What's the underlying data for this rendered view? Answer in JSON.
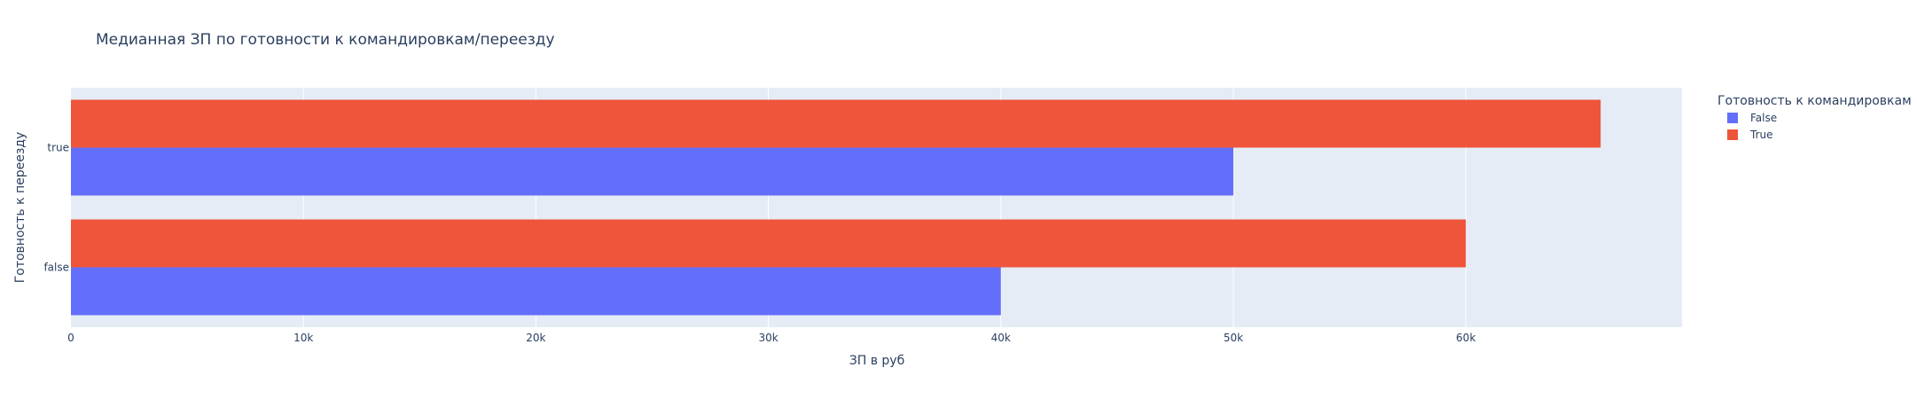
{
  "chart_data": {
    "type": "bar",
    "orientation": "horizontal",
    "barmode": "group",
    "title": "Медианная ЗП по готовности к командировкам/переезду",
    "xlabel": "ЗП в руб",
    "ylabel": "Готовность к переезду",
    "categories": [
      "false",
      "true"
    ],
    "xlim": [
      0,
      69300
    ],
    "x_ticks": [
      0,
      10000,
      20000,
      30000,
      40000,
      50000,
      60000
    ],
    "x_tick_labels": [
      "0",
      "10k",
      "20k",
      "30k",
      "40k",
      "50k",
      "60k"
    ],
    "legend": {
      "title": "Готовность к командировкам",
      "position": "top-right"
    },
    "series": [
      {
        "name": "False",
        "color": "#636efa",
        "values": [
          40000,
          50000
        ]
      },
      {
        "name": "True",
        "color": "#ef553b",
        "values": [
          60000,
          65800
        ]
      }
    ],
    "grid": true,
    "plot_background": "#e5ecf6"
  }
}
